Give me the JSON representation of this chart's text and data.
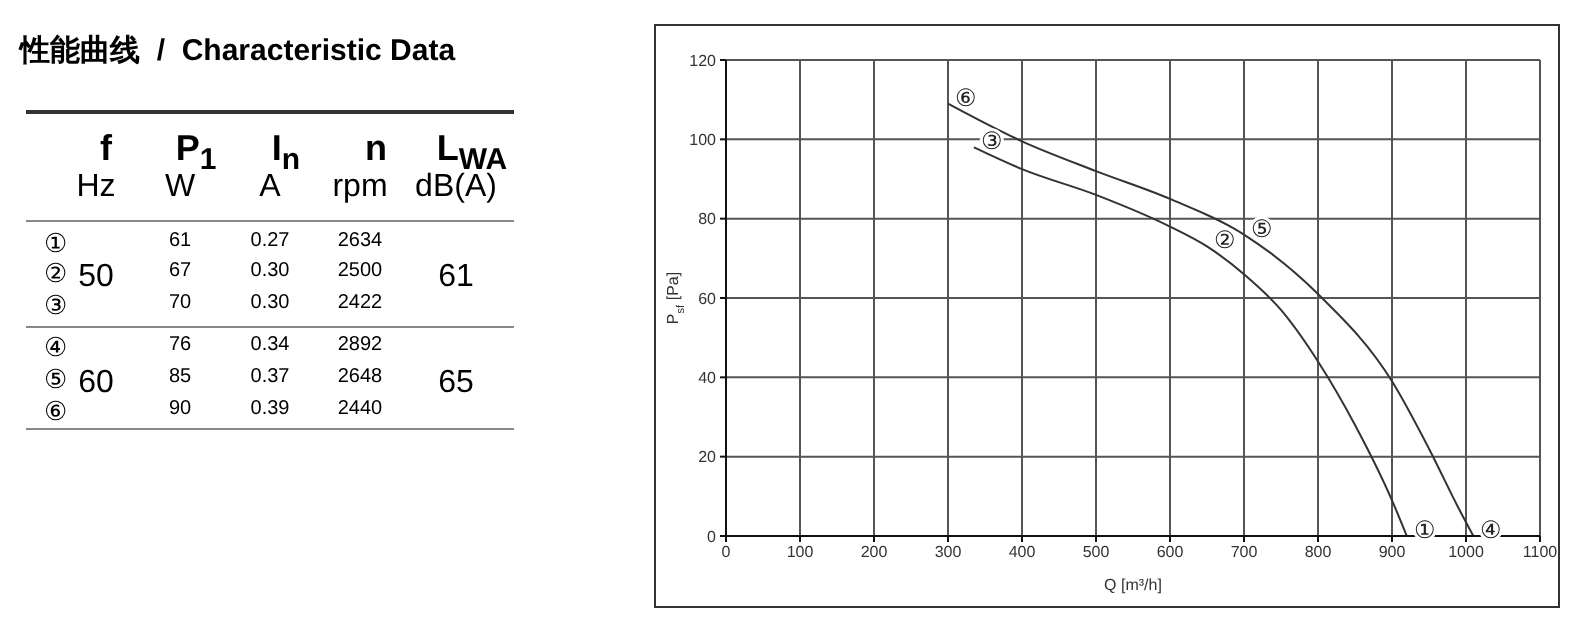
{
  "chart_data": [
    {
      "type": "other",
      "title": "性能曲线  /  Characteristic Data",
      "categories": [
        "f",
        "P$_{1}$",
        "I$_{n}$",
        "n",
        "L$_{WA}$"
      ],
      "y_categories": [
        null,
        "①",
        "②",
        "③",
        "④",
        "⑤",
        "⑥"
      ],
      "cell_labels": [
        [
          "Hz",
          "W",
          "A",
          "rpm",
          "dB(A)"
        ],
        [
          null,
          "61",
          "0.27",
          "2634",
          null
        ],
        [
          "50",
          "67",
          "0.30",
          "2500",
          "61"
        ],
        [
          null,
          "70",
          "0.30",
          "2422",
          null
        ],
        [
          null,
          "76",
          "0.34",
          "2892",
          null
        ],
        [
          "60",
          "85",
          "0.37",
          "2648",
          "65"
        ],
        [
          null,
          "90",
          "0.39",
          "2440",
          null
        ]
      ]
    },
    {
      "type": "line",
      "xlabel": "Q [m³/h]",
      "ylabel": "P$_{sf}$ [Pa]",
      "xlim": [
        0,
        1100
      ],
      "xticks": [
        0,
        100,
        200,
        300,
        400,
        500,
        600,
        700,
        800,
        900,
        1000,
        1100
      ],
      "ylim": [
        0,
        120
      ],
      "yticks": [
        0,
        20,
        40,
        60,
        80,
        100,
        120
      ],
      "grid": true,
      "series": [
        {
          "color": "#333333",
          "x": [
            335,
            400,
            500,
            600,
            650,
            700,
            750,
            800,
            850,
            900,
            920
          ],
          "values": [
            98,
            92.5,
            86,
            78,
            73,
            66,
            57,
            44,
            28,
            9,
            0
          ]
        },
        {
          "color": "#333333",
          "x": [
            300,
            400,
            500,
            600,
            700,
            800,
            900,
            950,
            990,
            1010
          ],
          "values": [
            109,
            99.5,
            92,
            85,
            76,
            61,
            39,
            22,
            7,
            0
          ]
        }
      ],
      "annotations": [
        {
          "text": "①",
          "x": 920,
          "y": 0
        },
        {
          "text": "②",
          "x": 650,
          "y": 73
        },
        {
          "text": "③",
          "x": 335,
          "y": 98
        },
        {
          "text": "④",
          "x": 1010,
          "y": 0
        },
        {
          "text": "⑤",
          "x": 700,
          "y": 76
        },
        {
          "text": "⑥",
          "x": 300,
          "y": 109
        }
      ]
    }
  ]
}
